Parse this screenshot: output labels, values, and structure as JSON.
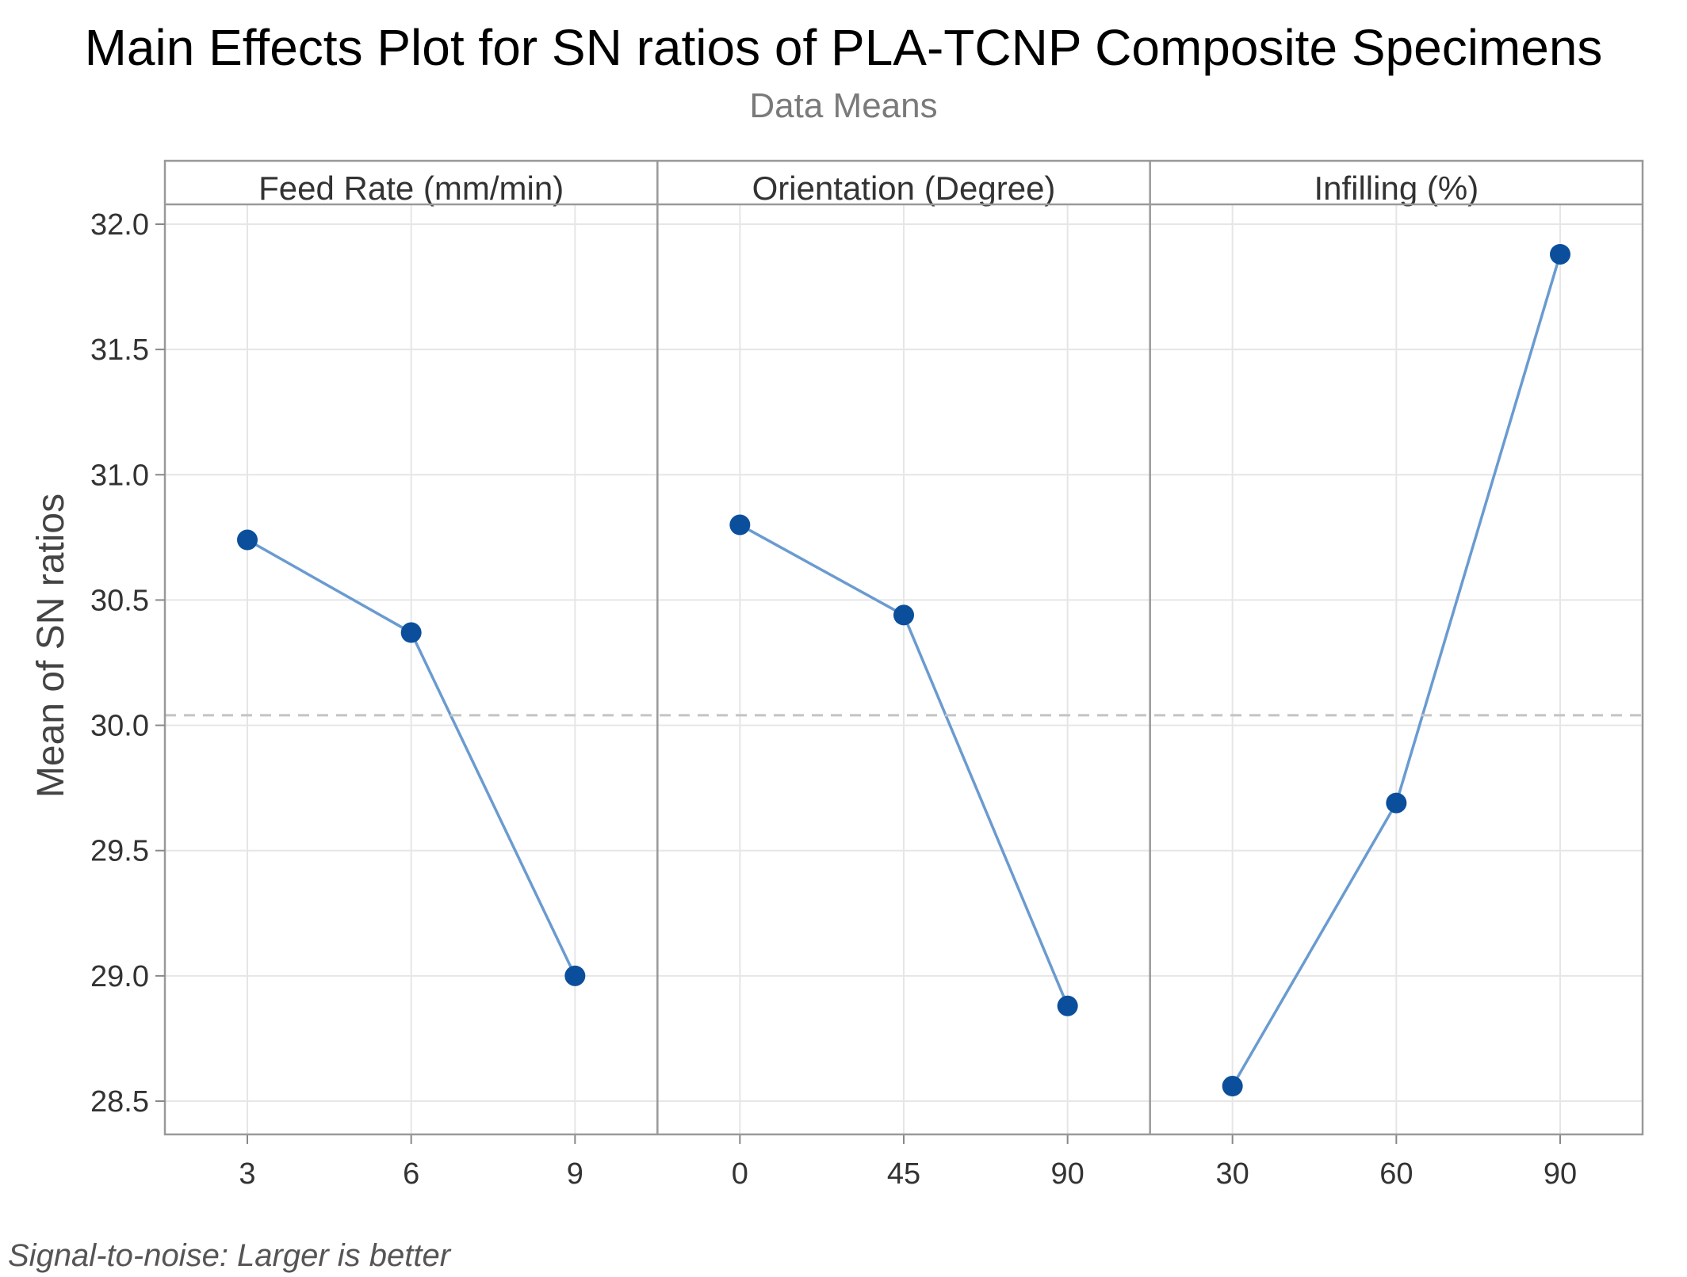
{
  "chart_data": {
    "type": "line",
    "title": "Main Effects Plot for SN ratios of PLA-TCNP Composite Specimens",
    "subtitle": "Data Means",
    "ylabel": "Mean of SN ratios",
    "ylim": [
      28.35,
      32.12
    ],
    "yticks": [
      "28.5",
      "29.0",
      "29.5",
      "30.0",
      "30.5",
      "31.0",
      "31.5",
      "32.0"
    ],
    "reference_line": 30.04,
    "grid": true,
    "footnote": "Signal-to-noise: Larger is better",
    "line_color": "#6a9bd0",
    "marker_color": "#0b4f9c",
    "panels": [
      {
        "name": "Feed Rate (mm/min)",
        "categories": [
          "3",
          "6",
          "9"
        ],
        "values": [
          30.74,
          30.37,
          29.0
        ]
      },
      {
        "name": "Orientation (Degree)",
        "categories": [
          "0",
          "45",
          "90"
        ],
        "values": [
          30.8,
          30.44,
          28.88
        ]
      },
      {
        "name": "Infilling (%)",
        "categories": [
          "30",
          "60",
          "90"
        ],
        "values": [
          28.56,
          29.69,
          31.88
        ]
      }
    ]
  }
}
